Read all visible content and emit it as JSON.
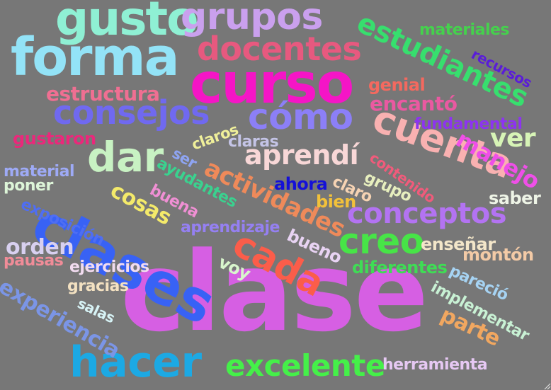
{
  "words": {
    "clase": "clase",
    "curso": "curso",
    "forma": "forma",
    "gusto": "gusto",
    "grupos": "grupos",
    "docentes": "docentes",
    "estudiantes": "estudiantes",
    "materiales": "materiales",
    "recursos": "recursos",
    "clases": "clases",
    "consejos": "consejos",
    "como": "cómo",
    "cuenta": "cuenta",
    "dar": "dar",
    "hacer": "hacer",
    "excelente": "excelente",
    "creo": "creo",
    "cada": "cada",
    "conceptos": "conceptos",
    "actividades": "actividades",
    "aprendi": "aprendí",
    "manejo": "manejo",
    "ver": "ver",
    "experiencia": "experiencia",
    "estructura": "estructura",
    "genial": "genial",
    "encanto": "encantó",
    "fundamental": "fundamental",
    "gustaron": "gustaron",
    "claros": "claros",
    "claras": "claras",
    "ser": "ser",
    "ayudantes": "ayudantes",
    "material": "material",
    "poner": "poner",
    "cosas": "cosas",
    "buena": "buena",
    "contenido": "contenido",
    "ahora": "ahora",
    "claro": "claro",
    "grupo": "grupo",
    "saber": "saber",
    "bien": "bien",
    "exposicion": "exposición",
    "aprendizaje": "aprendizaje",
    "orden": "orden",
    "bueno": "bueno",
    "ensenar": "enseñar",
    "monton": "montón",
    "pausas": "pausas",
    "voy": "voy",
    "ejercicios": "ejercicios",
    "diferentes": "diferentes",
    "parecio": "pareció",
    "gracias": "gracias",
    "implementar": "implementar",
    "salas": "salas",
    "parte": "parte",
    "herramienta": "herramienta"
  },
  "colors": {
    "clase": "#d65fe3",
    "curso": "#f515c6",
    "forma": "#93e3f7",
    "gusto": "#8ff0d4",
    "grupos": "#caa0ee",
    "docentes": "#e7597f",
    "estudiantes": "#37df6e",
    "materiales": "#45d14d",
    "recursos": "#5a1dd8",
    "clases": "#3862f5",
    "consejos": "#7069f0",
    "como": "#8c7ff7",
    "cuenta": "#f9b1b1",
    "dar": "#c8f2c3",
    "hacer": "#1ca9e4",
    "excelente": "#45f049",
    "creo": "#47e447",
    "cada": "#fb5d4a",
    "conceptos": "#b373f2",
    "actividades": "#ef8a5a",
    "aprendi": "#f8d7d7",
    "manejo": "#ef4fe8",
    "ver": "#d7f4b6",
    "experiencia": "#7b95e6",
    "estructura": "#ef6f92",
    "genial": "#f4695f",
    "encanto": "#ea59a1",
    "fundamental": "#8d33f1",
    "gustaron": "#ea287b"
  }
}
